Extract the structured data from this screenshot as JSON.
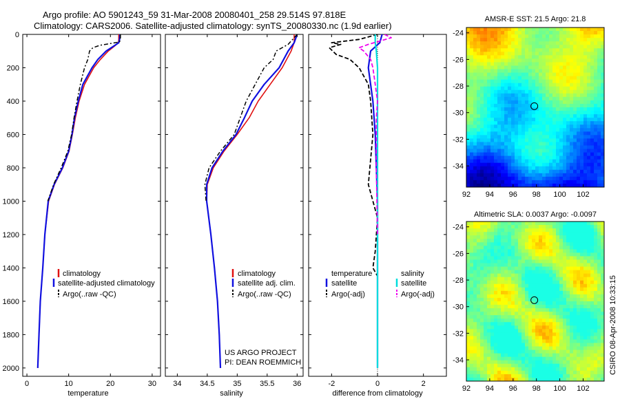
{
  "header": {
    "line1": "Argo profile: AO 5901243_59 31-Mar-2008 20080401_258 29.514S 97.818E",
    "line2": "Climatology: CARS2006. Satellite-adjusted climatology: synTS_20080330.nc (1.9d earlier)"
  },
  "credits": {
    "project": "US ARGO PROJECT",
    "pi": "PI: DEAN ROEMMICH",
    "stamp": "CSIRO 08-Apr-2008 10:33:15"
  },
  "colors": {
    "climatology": "#e01010",
    "satellite": "#1010e0",
    "argo": "#000000",
    "sal_satellite": "#00dddd",
    "sal_argo": "#ee00ee"
  },
  "chart_data": [
    {
      "type": "line",
      "id": "temperature",
      "xlabel": "temperature",
      "ylabel": "",
      "xlim": [
        -1,
        32
      ],
      "ylim": [
        2050,
        0
      ],
      "xticks": [
        0,
        10,
        20,
        30
      ],
      "yticks": [
        0,
        200,
        400,
        600,
        800,
        1000,
        1200,
        1400,
        1600,
        1800,
        2000
      ],
      "legend": [
        "climatology",
        "satellite-adjusted climatology",
        "Argo(..raw -QC)"
      ],
      "series": [
        {
          "name": "climatology",
          "depth": [
            0,
            30,
            50,
            70,
            100,
            150,
            200,
            300,
            400,
            500,
            600,
            700,
            800,
            900,
            1000,
            1200,
            1400,
            1600,
            1800,
            2000
          ],
          "values": [
            22.0,
            22.0,
            21.9,
            21.0,
            19.5,
            17.6,
            16.0,
            13.8,
            12.5,
            11.6,
            10.9,
            10.1,
            8.6,
            6.6,
            5.2,
            4.3,
            3.8,
            3.2,
            2.9,
            2.6
          ]
        },
        {
          "name": "satellite",
          "depth": [
            0,
            30,
            50,
            70,
            100,
            150,
            200,
            300,
            400,
            500,
            600,
            700,
            800,
            900,
            1000,
            1200,
            1400,
            1600,
            1800,
            2000
          ],
          "values": [
            22.3,
            22.2,
            22.0,
            20.8,
            19.0,
            17.0,
            15.6,
            13.4,
            12.3,
            11.4,
            10.8,
            10.0,
            8.5,
            6.5,
            5.1,
            4.3,
            3.8,
            3.2,
            2.9,
            2.6
          ]
        },
        {
          "name": "Argo(..raw -QC)",
          "depth": [
            0,
            20,
            45,
            55,
            65,
            80,
            100,
            150,
            200,
            300,
            400,
            500,
            600,
            700,
            800,
            900,
            1000
          ],
          "values": [
            22.4,
            22.4,
            22.2,
            20.0,
            17.5,
            15.8,
            15.0,
            14.6,
            13.8,
            12.8,
            12.0,
            11.3,
            10.7,
            9.8,
            8.2,
            6.4,
            5.0
          ]
        }
      ]
    },
    {
      "type": "line",
      "id": "salinity",
      "xlabel": "salinity",
      "ylabel": "",
      "xlim": [
        33.8,
        36.1
      ],
      "ylim": [
        2050,
        0
      ],
      "xticks": [
        34,
        34.5,
        35,
        35.5,
        36
      ],
      "legend": [
        "climatology",
        "satellite adj. clim.",
        "Argo(..raw -QC)"
      ],
      "series": [
        {
          "name": "climatology",
          "depth": [
            0,
            50,
            100,
            200,
            300,
            400,
            500,
            600,
            700,
            800,
            900,
            1000,
            1200,
            1400,
            1600,
            1800,
            2000
          ],
          "values": [
            35.95,
            35.95,
            35.9,
            35.75,
            35.55,
            35.35,
            35.2,
            35.0,
            34.78,
            34.6,
            34.5,
            34.49,
            34.56,
            34.62,
            34.67,
            34.7,
            34.72
          ]
        },
        {
          "name": "satellite",
          "depth": [
            0,
            50,
            100,
            200,
            300,
            400,
            500,
            600,
            700,
            800,
            900,
            1000,
            1200,
            1400,
            1600,
            1800,
            2000
          ],
          "values": [
            36.0,
            35.95,
            35.85,
            35.7,
            35.45,
            35.25,
            35.12,
            34.98,
            34.76,
            34.58,
            34.49,
            34.49,
            34.56,
            34.62,
            34.67,
            34.7,
            34.72
          ]
        },
        {
          "name": "Argo(..raw -QC)",
          "depth": [
            0,
            20,
            40,
            60,
            100,
            150,
            200,
            300,
            400,
            500,
            600,
            700,
            800,
            900,
            1000
          ],
          "values": [
            36.0,
            35.95,
            35.9,
            35.85,
            35.65,
            35.6,
            35.45,
            35.3,
            35.15,
            35.05,
            34.95,
            34.72,
            34.53,
            34.46,
            34.48
          ]
        }
      ]
    },
    {
      "type": "line",
      "id": "difference",
      "xlabel": "difference from climatology",
      "ylabel": "",
      "xlim": [
        -3,
        3
      ],
      "ylim": [
        2050,
        0
      ],
      "xticks": [
        -2,
        0,
        2
      ],
      "legend_temperature": {
        "title": "temperature",
        "entries": [
          "satellite",
          "Argo(-adj)"
        ]
      },
      "legend_salinity": {
        "title": "salinity",
        "entries": [
          "satellite",
          "Argo(-adj)"
        ]
      },
      "series": [
        {
          "name": "temperature satellite",
          "depth": [
            0,
            50,
            100,
            200,
            400,
            600,
            800,
            1000,
            1500,
            2000
          ],
          "values": [
            0.2,
            0.1,
            -0.3,
            -0.4,
            -0.2,
            -0.1,
            -0.05,
            0.0,
            0.0,
            0.0
          ]
        },
        {
          "name": "temperature Argo(-adj)",
          "depth": [
            0,
            30,
            50,
            60,
            80,
            120,
            150,
            200,
            300,
            400,
            600,
            900,
            1100,
            1300,
            1400,
            1450
          ],
          "values": [
            0.0,
            -0.8,
            -2.0,
            -1.6,
            -2.1,
            -1.8,
            -1.2,
            -0.8,
            -0.4,
            -0.3,
            -0.2,
            -0.4,
            0.0,
            -0.1,
            -0.2,
            0.0
          ]
        },
        {
          "name": "salinity satellite",
          "depth": [
            0,
            50,
            100,
            200,
            400,
            600,
            800,
            1000,
            1500,
            2000
          ],
          "values": [
            -0.1,
            -0.1,
            -0.05,
            0.0,
            0.0,
            0.0,
            0.0,
            0.0,
            0.0,
            0.0
          ]
        },
        {
          "name": "salinity Argo(-adj)",
          "depth": [
            0,
            20,
            40,
            60,
            80,
            100,
            150,
            200,
            300,
            400,
            500,
            800,
            1200
          ],
          "values": [
            0.3,
            0.6,
            0.1,
            -0.4,
            -0.8,
            -0.6,
            -0.3,
            -0.2,
            -0.1,
            0.0,
            -0.05,
            -0.05,
            0.0
          ]
        }
      ]
    },
    {
      "type": "heatmap",
      "id": "sst-map",
      "title": "AMSR-E SST: 21.5 Argo: 21.8",
      "xticks": [
        92,
        94,
        96,
        98,
        100,
        102
      ],
      "yticks": [
        -24,
        -26,
        -28,
        -30,
        -32,
        -34
      ],
      "xlim": [
        92,
        103.8
      ],
      "ylim": [
        -35.6,
        -23.6
      ],
      "marker": {
        "lon": 97.818,
        "lat": -29.514
      }
    },
    {
      "type": "heatmap",
      "id": "sla-map",
      "title": "Altimetric SLA: 0.0037 Argo: -0.0097",
      "xticks": [
        92,
        94,
        96,
        98,
        100,
        102
      ],
      "yticks": [
        -24,
        -26,
        -28,
        -30,
        -32,
        -34
      ],
      "xlim": [
        92,
        103.8
      ],
      "ylim": [
        -35.6,
        -23.6
      ],
      "marker": {
        "lon": 97.818,
        "lat": -29.514
      }
    }
  ]
}
